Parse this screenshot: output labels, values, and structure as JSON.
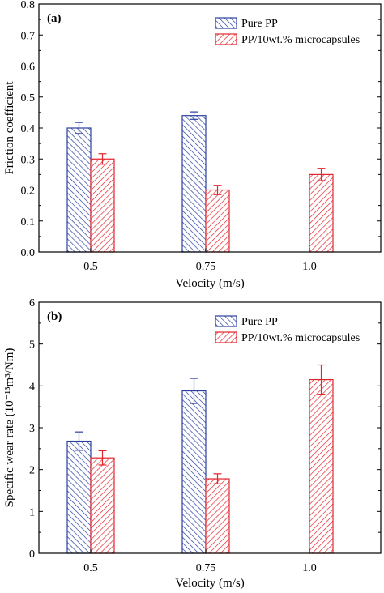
{
  "chart_data": [
    {
      "type": "bar",
      "panel_label": "(a)",
      "categories": [
        "0.5",
        "0.75",
        "1.0"
      ],
      "xlabel": "Velocity (m/s)",
      "ylabel": "Friction coefficient",
      "ylim": [
        0,
        0.8
      ],
      "yticks": [
        "0.0",
        "0.1",
        "0.2",
        "0.3",
        "0.4",
        "0.5",
        "0.6",
        "0.7",
        "0.8"
      ],
      "legend_position": "top-right",
      "series": [
        {
          "name": "Pure PP",
          "values": [
            0.4,
            0.44,
            null
          ],
          "errors": [
            0.018,
            0.012,
            null
          ],
          "color": "#2b3fa0"
        },
        {
          "name": "PP/10wt.% microcapsules",
          "values": [
            0.3,
            0.2,
            0.25
          ],
          "errors": [
            0.017,
            0.015,
            0.02
          ],
          "color": "#e3242b"
        }
      ]
    },
    {
      "type": "bar",
      "panel_label": "(b)",
      "categories": [
        "0.5",
        "0.75",
        "1.0"
      ],
      "xlabel": "Velocity (m/s)",
      "ylabel": "Specific wear rate (10⁻¹³m³/Nm)",
      "ylim": [
        0,
        6
      ],
      "yticks": [
        "0",
        "1",
        "2",
        "3",
        "4",
        "5",
        "6"
      ],
      "legend_position": "top-right",
      "series": [
        {
          "name": "Pure PP",
          "values": [
            2.68,
            3.88,
            null
          ],
          "errors": [
            0.22,
            0.3,
            null
          ],
          "color": "#2b3fa0"
        },
        {
          "name": "PP/10wt.% microcapsules",
          "values": [
            2.28,
            1.78,
            4.15
          ],
          "errors": [
            0.17,
            0.12,
            0.35
          ],
          "color": "#e3242b"
        }
      ]
    }
  ]
}
